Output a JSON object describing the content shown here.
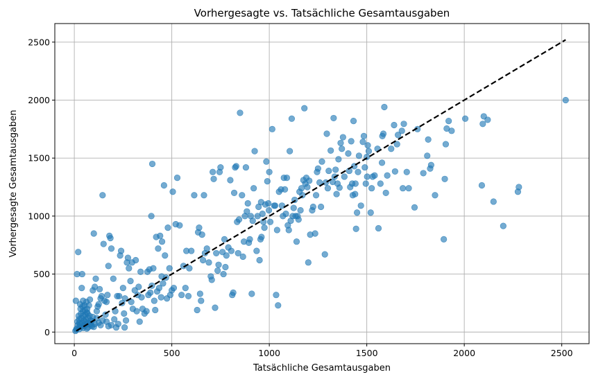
{
  "chart_data": {
    "type": "scatter",
    "title": "Vorhergesagte vs. Tatsächliche Gesamtausgaben",
    "xlabel": "Tatsächliche Gesamtausgaben",
    "ylabel": "Vorhergesagte Gesamtausgaben",
    "xlim": [
      -100,
      2640
    ],
    "ylim": [
      -100,
      2660
    ],
    "xticks": [
      0,
      500,
      1000,
      1500,
      2000,
      2500
    ],
    "yticks": [
      0,
      500,
      1000,
      1500,
      2000,
      2500
    ],
    "grid": true,
    "colors": {
      "points": "#1f77b4",
      "reference_line": "#000000",
      "grid": "#b0b0b0"
    },
    "reference_line": {
      "style": "dashed",
      "from": [
        10,
        10
      ],
      "to": [
        2520,
        2520
      ]
    },
    "points": [
      [
        2520,
        2000
      ],
      [
        2280,
        1250
      ],
      [
        2275,
        1210
      ],
      [
        2200,
        915
      ],
      [
        2150,
        1125
      ],
      [
        2120,
        1830
      ],
      [
        2100,
        1860
      ],
      [
        2095,
        1795
      ],
      [
        2090,
        1265
      ],
      [
        2005,
        1840
      ],
      [
        1935,
        1735
      ],
      [
        1920,
        1820
      ],
      [
        1910,
        1755
      ],
      [
        1905,
        1620
      ],
      [
        1900,
        1320
      ],
      [
        1895,
        800
      ],
      [
        1850,
        1180
      ],
      [
        1830,
        1440
      ],
      [
        1825,
        1410
      ],
      [
        1815,
        1660
      ],
      [
        1810,
        1520
      ],
      [
        1790,
        1370
      ],
      [
        1760,
        1750
      ],
      [
        1745,
        1075
      ],
      [
        1715,
        1240
      ],
      [
        1705,
        1380
      ],
      [
        1690,
        1795
      ],
      [
        1685,
        1240
      ],
      [
        1680,
        1735
      ],
      [
        1660,
        1700
      ],
      [
        1655,
        1620
      ],
      [
        1645,
        1385
      ],
      [
        1640,
        1785
      ],
      [
        1625,
        1580
      ],
      [
        1605,
        1350
      ],
      [
        1598,
        1200
      ],
      [
        1590,
        1940
      ],
      [
        1585,
        1710
      ],
      [
        1580,
        1690
      ],
      [
        1578,
        1460
      ],
      [
        1570,
        1280
      ],
      [
        1560,
        895
      ],
      [
        1555,
        1580
      ],
      [
        1540,
        1350
      ],
      [
        1530,
        1340
      ],
      [
        1525,
        1240
      ],
      [
        1520,
        1030
      ],
      [
        1510,
        1560
      ],
      [
        1505,
        1610
      ],
      [
        1502,
        1340
      ],
      [
        1500,
        1510
      ],
      [
        1495,
        1280
      ],
      [
        1490,
        1420
      ],
      [
        1485,
        1690
      ],
      [
        1480,
        1640
      ],
      [
        1470,
        1090
      ],
      [
        1460,
        1520
      ],
      [
        1455,
        1380
      ],
      [
        1450,
        1030
      ],
      [
        1445,
        890
      ],
      [
        1442,
        1280
      ],
      [
        1440,
        1190
      ],
      [
        1436,
        1430
      ],
      [
        1432,
        1820
      ],
      [
        1428,
        1180
      ],
      [
        1425,
        1280
      ],
      [
        1420,
        1645
      ],
      [
        1415,
        1250
      ],
      [
        1410,
        1390
      ],
      [
        1405,
        1540
      ],
      [
        1385,
        1340
      ],
      [
        1378,
        1680
      ],
      [
        1372,
        1580
      ],
      [
        1366,
        1630
      ],
      [
        1360,
        1245
      ],
      [
        1355,
        1490
      ],
      [
        1350,
        1280
      ],
      [
        1345,
        1190
      ],
      [
        1340,
        1400
      ],
      [
        1335,
        1340
      ],
      [
        1330,
        1845
      ],
      [
        1325,
        1295
      ],
      [
        1315,
        1565
      ],
      [
        1305,
        1390
      ],
      [
        1300,
        1240
      ],
      [
        1295,
        1710
      ],
      [
        1290,
        1290
      ],
      [
        1285,
        670
      ],
      [
        1270,
        1470
      ],
      [
        1265,
        1080
      ],
      [
        1258,
        1290
      ],
      [
        1250,
        1410
      ],
      [
        1245,
        1380
      ],
      [
        1240,
        1180
      ],
      [
        1235,
        850
      ],
      [
        1225,
        1080
      ],
      [
        1220,
        1050
      ],
      [
        1210,
        840
      ],
      [
        1205,
        1305
      ],
      [
        1200,
        600
      ],
      [
        1195,
        1250
      ],
      [
        1190,
        1330
      ],
      [
        1185,
        1280
      ],
      [
        1180,
        1930
      ],
      [
        1175,
        1310
      ],
      [
        1170,
        1180
      ],
      [
        1165,
        1240
      ],
      [
        1160,
        1050
      ],
      [
        1155,
        1210
      ],
      [
        1150,
        970
      ],
      [
        1145,
        1000
      ],
      [
        1140,
        780
      ],
      [
        1135,
        1000
      ],
      [
        1130,
        1140
      ],
      [
        1125,
        1070
      ],
      [
        1120,
        1000
      ],
      [
        1115,
        1840
      ],
      [
        1110,
        960
      ],
      [
        1105,
        1560
      ],
      [
        1100,
        880
      ],
      [
        1095,
        920
      ],
      [
        1090,
        1330
      ],
      [
        1085,
        1020
      ],
      [
        1080,
        1230
      ],
      [
        1075,
        1330
      ],
      [
        1070,
        1000
      ],
      [
        1065,
        1090
      ],
      [
        1060,
        1230
      ],
      [
        1050,
        1210
      ],
      [
        1045,
        230
      ],
      [
        1040,
        880
      ],
      [
        1035,
        320
      ],
      [
        1030,
        1090
      ],
      [
        1025,
        1090
      ],
      [
        1015,
        1750
      ],
      [
        1005,
        950
      ],
      [
        1000,
        1380
      ],
      [
        998,
        1050
      ],
      [
        995,
        1110
      ],
      [
        990,
        1300
      ],
      [
        985,
        1470
      ],
      [
        980,
        1100
      ],
      [
        975,
        900
      ],
      [
        970,
        950
      ],
      [
        965,
        1020
      ],
      [
        960,
        820
      ],
      [
        958,
        1120
      ],
      [
        955,
        800
      ],
      [
        950,
        620
      ],
      [
        945,
        1080
      ],
      [
        940,
        1000
      ],
      [
        935,
        700
      ],
      [
        925,
        1560
      ],
      [
        920,
        1240
      ],
      [
        915,
        960
      ],
      [
        910,
        330
      ],
      [
        905,
        1000
      ],
      [
        900,
        800
      ],
      [
        895,
        770
      ],
      [
        890,
        1110
      ],
      [
        885,
        1040
      ],
      [
        880,
        1420
      ],
      [
        875,
        1000
      ],
      [
        870,
        780
      ],
      [
        865,
        650
      ],
      [
        860,
        1180
      ],
      [
        850,
        1890
      ],
      [
        845,
        970
      ],
      [
        840,
        680
      ],
      [
        835,
        950
      ],
      [
        830,
        1430
      ],
      [
        825,
        1420
      ],
      [
        820,
        1200
      ],
      [
        815,
        340
      ],
      [
        810,
        320
      ],
      [
        805,
        700
      ],
      [
        800,
        1310
      ],
      [
        790,
        730
      ],
      [
        780,
        660
      ],
      [
        775,
        560
      ],
      [
        770,
        800
      ],
      [
        765,
        500
      ],
      [
        760,
        690
      ],
      [
        750,
        1420
      ],
      [
        745,
        1380
      ],
      [
        740,
        580
      ],
      [
        735,
        530
      ],
      [
        728,
        680
      ],
      [
        722,
        210
      ],
      [
        715,
        1320
      ],
      [
        710,
        1380
      ],
      [
        705,
        450
      ],
      [
        700,
        480
      ],
      [
        690,
        600
      ],
      [
        680,
        720
      ],
      [
        670,
        680
      ],
      [
        665,
        1180
      ],
      [
        660,
        620
      ],
      [
        655,
        840
      ],
      [
        650,
        270
      ],
      [
        645,
        330
      ],
      [
        640,
        900
      ],
      [
        635,
        860
      ],
      [
        630,
        190
      ],
      [
        615,
        1180
      ],
      [
        600,
        700
      ],
      [
        590,
        550
      ],
      [
        585,
        310
      ],
      [
        575,
        700
      ],
      [
        570,
        380
      ],
      [
        560,
        570
      ],
      [
        550,
        320
      ],
      [
        540,
        920
      ],
      [
        528,
        1330
      ],
      [
        520,
        930
      ],
      [
        510,
        380
      ],
      [
        505,
        1210
      ],
      [
        500,
        360
      ],
      [
        492,
        320
      ],
      [
        488,
        550
      ],
      [
        480,
        900
      ],
      [
        475,
        290
      ],
      [
        470,
        470
      ],
      [
        465,
        660
      ],
      [
        460,
        1265
      ],
      [
        455,
        420
      ],
      [
        450,
        780
      ],
      [
        448,
        480
      ],
      [
        445,
        300
      ],
      [
        440,
        830
      ],
      [
        435,
        380
      ],
      [
        430,
        720
      ],
      [
        425,
        350
      ],
      [
        420,
        820
      ],
      [
        415,
        190
      ],
      [
        410,
        270
      ],
      [
        405,
        550
      ],
      [
        400,
        1450
      ],
      [
        398,
        400
      ],
      [
        395,
        1000
      ],
      [
        390,
        340
      ],
      [
        385,
        540
      ],
      [
        380,
        320
      ],
      [
        375,
        520
      ],
      [
        370,
        180
      ],
      [
        360,
        160
      ],
      [
        350,
        200
      ],
      [
        345,
        300
      ],
      [
        340,
        520
      ],
      [
        335,
        90
      ],
      [
        330,
        390
      ],
      [
        325,
        320
      ],
      [
        320,
        180
      ],
      [
        315,
        620
      ],
      [
        310,
        360
      ],
      [
        300,
        200
      ],
      [
        296,
        600
      ],
      [
        292,
        260
      ],
      [
        288,
        440
      ],
      [
        280,
        550
      ],
      [
        275,
        640
      ],
      [
        270,
        600
      ],
      [
        265,
        100
      ],
      [
        260,
        290
      ],
      [
        258,
        40
      ],
      [
        255,
        160
      ],
      [
        250,
        380
      ],
      [
        245,
        250
      ],
      [
        240,
        700
      ],
      [
        235,
        660
      ],
      [
        230,
        310
      ],
      [
        220,
        310
      ],
      [
        210,
        180
      ],
      [
        200,
        460
      ],
      [
        190,
        720
      ],
      [
        185,
        810
      ],
      [
        180,
        830
      ],
      [
        175,
        570
      ],
      [
        170,
        320
      ],
      [
        165,
        260
      ],
      [
        160,
        150
      ],
      [
        155,
        270
      ],
      [
        150,
        760
      ],
      [
        145,
        1180
      ],
      [
        140,
        310
      ],
      [
        135,
        290
      ],
      [
        130,
        370
      ],
      [
        125,
        240
      ],
      [
        120,
        220
      ],
      [
        115,
        180
      ],
      [
        110,
        460
      ],
      [
        105,
        390
      ],
      [
        100,
        850
      ],
      [
        95,
        360
      ],
      [
        90,
        50
      ],
      [
        85,
        100
      ],
      [
        80,
        280
      ],
      [
        78,
        140
      ],
      [
        75,
        230
      ],
      [
        72,
        80
      ],
      [
        70,
        120
      ],
      [
        68,
        160
      ],
      [
        66,
        200
      ],
      [
        64,
        30
      ],
      [
        62,
        260
      ],
      [
        60,
        70
      ],
      [
        58,
        110
      ],
      [
        56,
        150
      ],
      [
        54,
        190
      ],
      [
        52,
        230
      ],
      [
        50,
        60
      ],
      [
        48,
        100
      ],
      [
        46,
        140
      ],
      [
        44,
        180
      ],
      [
        42,
        220
      ],
      [
        40,
        500
      ],
      [
        38,
        380
      ],
      [
        36,
        120
      ],
      [
        34,
        160
      ],
      [
        32,
        200
      ],
      [
        30,
        240
      ],
      [
        28,
        50
      ],
      [
        26,
        80
      ],
      [
        24,
        110
      ],
      [
        22,
        140
      ],
      [
        20,
        690
      ],
      [
        18,
        60
      ],
      [
        16,
        90
      ],
      [
        14,
        500
      ],
      [
        12,
        30
      ],
      [
        10,
        20
      ],
      [
        8,
        270
      ],
      [
        6,
        10
      ],
      [
        45,
        270
      ],
      [
        55,
        90
      ],
      [
        65,
        170
      ],
      [
        85,
        60
      ],
      [
        95,
        130
      ],
      [
        105,
        70
      ],
      [
        115,
        120
      ],
      [
        125,
        80
      ],
      [
        135,
        60
      ],
      [
        145,
        100
      ],
      [
        165,
        90
      ],
      [
        175,
        50
      ],
      [
        190,
        60
      ],
      [
        205,
        110
      ],
      [
        215,
        40
      ],
      [
        225,
        70
      ],
      [
        35,
        45
      ],
      [
        45,
        35
      ],
      [
        55,
        55
      ],
      [
        25,
        25
      ],
      [
        30,
        65
      ],
      [
        40,
        80
      ],
      [
        70,
        40
      ],
      [
        80,
        70
      ],
      [
        90,
        95
      ],
      [
        100,
        45
      ]
    ]
  }
}
